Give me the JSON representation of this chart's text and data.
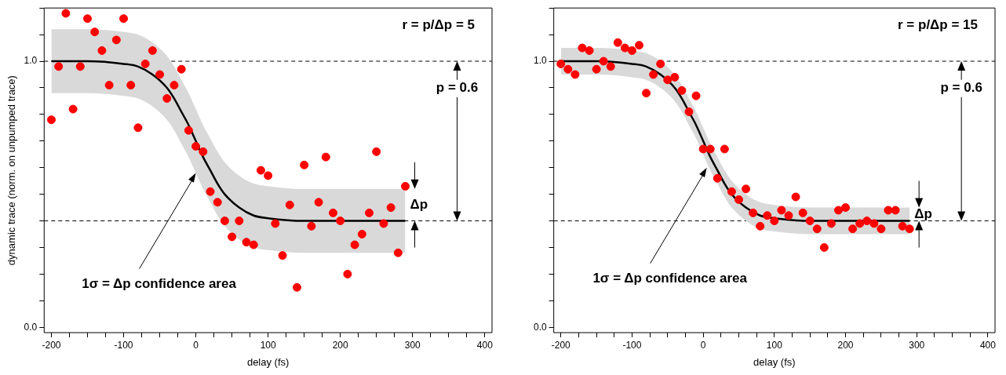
{
  "chart_data": [
    {
      "type": "scatter",
      "xlabel": "delay (fs)",
      "ylabel": "dynamic trace (norm. on unpumped trace)",
      "xlim": [
        -210,
        410
      ],
      "ylim": [
        -0.02,
        1.2
      ],
      "xticks": [
        -200,
        {
          "value": -175,
          "label": null
        },
        {
          "value": -150,
          "label": null
        },
        {
          "value": -125,
          "label": null
        },
        -100,
        {
          "value": -75,
          "label": null
        },
        {
          "value": -50,
          "label": null
        },
        {
          "value": -25,
          "label": null
        },
        0,
        {
          "value": 25,
          "label": null
        },
        {
          "value": 50,
          "label": null
        },
        {
          "value": 75,
          "label": null
        },
        100,
        {
          "value": 125,
          "label": null
        },
        {
          "value": 150,
          "label": null
        },
        {
          "value": 175,
          "label": null
        },
        200,
        {
          "value": 225,
          "label": null
        },
        {
          "value": 250,
          "label": null
        },
        {
          "value": 275,
          "label": null
        },
        300,
        {
          "value": 325,
          "label": null
        },
        {
          "value": 350,
          "label": null
        },
        {
          "value": 375,
          "label": null
        },
        400
      ],
      "yticks": [
        {
          "value": 0,
          "label": "0.0"
        },
        {
          "value": 0.1,
          "label": null
        },
        {
          "value": 0.2,
          "label": null
        },
        {
          "value": 0.3,
          "label": null
        },
        {
          "value": 0.4,
          "label": null
        },
        {
          "value": 0.5,
          "label": null
        },
        {
          "value": 0.6,
          "label": null
        },
        {
          "value": 0.7,
          "label": null
        },
        {
          "value": 0.8,
          "label": null
        },
        {
          "value": 0.9,
          "label": null
        },
        {
          "value": 1,
          "label": "1.0"
        },
        {
          "value": 1.1,
          "label": null
        },
        {
          "value": 1.2,
          "label": null
        }
      ],
      "grid": false,
      "legend": false,
      "ref_lines": [
        {
          "axis": "y",
          "value": 1,
          "line_style": "dashed"
        },
        {
          "axis": "y",
          "value": 0.4,
          "line_style": "dashed"
        }
      ],
      "series": [
        {
          "type": "scatter",
          "marker": "circle",
          "color": "#ff0000",
          "x": [
            -200,
            -190,
            -180,
            -170,
            -160,
            -150,
            -140,
            -130,
            -120,
            -110,
            -100,
            -90,
            -80,
            -70,
            -60,
            -50,
            -40,
            -30,
            -20,
            -10,
            0,
            10,
            20,
            30,
            40,
            50,
            60,
            70,
            80,
            90,
            100,
            110,
            120,
            130,
            140,
            150,
            160,
            170,
            180,
            190,
            200,
            210,
            220,
            230,
            240,
            250,
            260,
            270,
            280,
            290
          ],
          "values": [
            0.78,
            0.98,
            1.18,
            0.82,
            0.98,
            1.16,
            1.11,
            1.04,
            0.91,
            1.08,
            1.16,
            0.91,
            0.75,
            0.99,
            1.04,
            0.95,
            0.86,
            0.91,
            0.97,
            0.74,
            0.68,
            0.66,
            0.51,
            0.47,
            0.4,
            0.34,
            0.4,
            0.32,
            0.31,
            0.59,
            0.57,
            0.39,
            0.27,
            0.46,
            0.15,
            0.61,
            0.38,
            0.47,
            0.64,
            0.43,
            0.4,
            0.2,
            0.31,
            0.35,
            0.43,
            0.66,
            0.39,
            0.45,
            0.28,
            0.53
          ]
        },
        {
          "type": "line",
          "color": "#000000",
          "x": [
            -200,
            -150,
            -100,
            -80,
            -60,
            -40,
            -30,
            -20,
            -10,
            0,
            10,
            20,
            30,
            40,
            60,
            80,
            100,
            150,
            200,
            290
          ],
          "values": [
            1.0,
            1.0,
            0.99,
            0.98,
            0.95,
            0.9,
            0.86,
            0.81,
            0.76,
            0.7,
            0.64,
            0.59,
            0.54,
            0.5,
            0.45,
            0.42,
            0.41,
            0.4,
            0.4,
            0.4
          ],
          "lower": [
            0.88,
            0.88,
            0.87,
            0.86,
            0.83,
            0.78,
            0.74,
            0.69,
            0.64,
            0.58,
            0.52,
            0.47,
            0.42,
            0.38,
            0.33,
            0.3,
            0.29,
            0.28,
            0.28,
            0.28
          ],
          "upper": [
            1.12,
            1.12,
            1.11,
            1.1,
            1.07,
            1.02,
            0.98,
            0.93,
            0.88,
            0.82,
            0.76,
            0.71,
            0.66,
            0.62,
            0.57,
            0.54,
            0.53,
            0.52,
            0.52,
            0.52
          ]
        }
      ],
      "annotations": [
        "r = p/Δp = 5",
        "p = 0.6",
        "Δp",
        {
          "text": "1σ = Δp confidence area",
          "x": 0,
          "y": 0.58
        }
      ]
    },
    {
      "type": "scatter",
      "xlabel": "delay (fs)",
      "xlim": [
        -210,
        410
      ],
      "ylim": [
        -0.02,
        1.2
      ],
      "xticks": [
        -200,
        {
          "value": -175,
          "label": null
        },
        {
          "value": -150,
          "label": null
        },
        {
          "value": -125,
          "label": null
        },
        -100,
        {
          "value": -75,
          "label": null
        },
        {
          "value": -50,
          "label": null
        },
        {
          "value": -25,
          "label": null
        },
        0,
        {
          "value": 25,
          "label": null
        },
        {
          "value": 50,
          "label": null
        },
        {
          "value": 75,
          "label": null
        },
        100,
        {
          "value": 125,
          "label": null
        },
        {
          "value": 150,
          "label": null
        },
        {
          "value": 175,
          "label": null
        },
        200,
        {
          "value": 225,
          "label": null
        },
        {
          "value": 250,
          "label": null
        },
        {
          "value": 275,
          "label": null
        },
        300,
        {
          "value": 325,
          "label": null
        },
        {
          "value": 350,
          "label": null
        },
        {
          "value": 375,
          "label": null
        },
        400
      ],
      "yticks": [
        {
          "value": 0,
          "label": "0.0"
        },
        {
          "value": 0.1,
          "label": null
        },
        {
          "value": 0.2,
          "label": null
        },
        {
          "value": 0.3,
          "label": null
        },
        {
          "value": 0.4,
          "label": null
        },
        {
          "value": 0.5,
          "label": null
        },
        {
          "value": 0.6,
          "label": null
        },
        {
          "value": 0.7,
          "label": null
        },
        {
          "value": 0.8,
          "label": null
        },
        {
          "value": 0.9,
          "label": null
        },
        {
          "value": 1,
          "label": "1.0"
        },
        {
          "value": 1.1,
          "label": null
        },
        {
          "value": 1.2,
          "label": null
        }
      ],
      "grid": false,
      "legend": false,
      "ref_lines": [
        {
          "axis": "y",
          "value": 1,
          "line_style": "dashed"
        },
        {
          "axis": "y",
          "value": 0.4,
          "line_style": "dashed"
        }
      ],
      "series": [
        {
          "type": "scatter",
          "marker": "circle",
          "color": "#ff0000",
          "x": [
            -200,
            -190,
            -180,
            -170,
            -160,
            -150,
            -140,
            -130,
            -120,
            -110,
            -100,
            -90,
            -80,
            -70,
            -60,
            -50,
            -40,
            -30,
            -20,
            -10,
            0,
            10,
            20,
            30,
            40,
            50,
            60,
            70,
            80,
            90,
            100,
            110,
            120,
            130,
            140,
            150,
            160,
            170,
            180,
            190,
            200,
            210,
            220,
            230,
            240,
            250,
            260,
            270,
            280,
            290
          ],
          "values": [
            0.99,
            0.97,
            0.95,
            1.05,
            1.04,
            0.97,
            1.0,
            0.98,
            1.07,
            1.05,
            1.04,
            1.06,
            0.88,
            0.95,
            0.99,
            0.93,
            0.94,
            0.89,
            0.81,
            0.87,
            0.67,
            0.67,
            0.56,
            0.67,
            0.51,
            0.48,
            0.52,
            0.43,
            0.38,
            0.42,
            0.4,
            0.44,
            0.42,
            0.49,
            0.43,
            0.4,
            0.37,
            0.3,
            0.39,
            0.44,
            0.45,
            0.37,
            0.39,
            0.4,
            0.39,
            0.37,
            0.44,
            0.44,
            0.38,
            0.37
          ]
        },
        {
          "type": "line",
          "color": "#000000",
          "x": [
            -200,
            -150,
            -100,
            -80,
            -60,
            -40,
            -30,
            -20,
            -10,
            0,
            10,
            20,
            30,
            40,
            60,
            80,
            100,
            150,
            200,
            290
          ],
          "values": [
            1.0,
            1.0,
            0.99,
            0.98,
            0.95,
            0.9,
            0.86,
            0.81,
            0.76,
            0.7,
            0.64,
            0.59,
            0.54,
            0.5,
            0.45,
            0.42,
            0.41,
            0.4,
            0.4,
            0.4
          ],
          "lower": [
            0.95,
            0.95,
            0.94,
            0.93,
            0.9,
            0.85,
            0.81,
            0.76,
            0.71,
            0.65,
            0.59,
            0.54,
            0.49,
            0.45,
            0.4,
            0.37,
            0.36,
            0.35,
            0.35,
            0.35
          ],
          "upper": [
            1.05,
            1.05,
            1.04,
            1.03,
            1.0,
            0.95,
            0.91,
            0.86,
            0.81,
            0.75,
            0.69,
            0.64,
            0.59,
            0.55,
            0.5,
            0.47,
            0.46,
            0.45,
            0.45,
            0.45
          ]
        }
      ],
      "annotations": [
        "r = p/Δp = 15",
        "p = 0.6",
        "Δp",
        {
          "text": "1σ = Δp confidence area",
          "x": 5,
          "y": 0.6
        }
      ]
    }
  ]
}
